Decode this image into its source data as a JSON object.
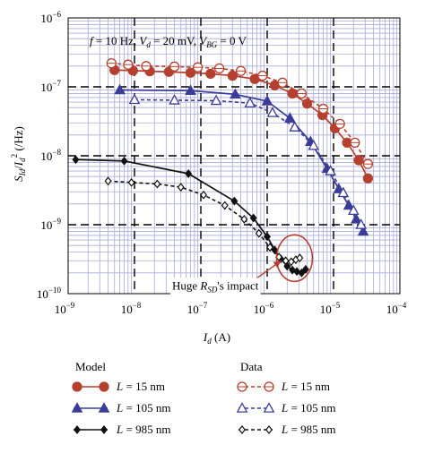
{
  "chart_data": {
    "type": "scatter",
    "title": "f = 10 Hz, V_d = 20 mV, V_BG = 0 V",
    "title_parts": {
      "f": "f",
      "f_val": " = 10 Hz, ",
      "vd": "V",
      "vd_sub": "d",
      "vd_val": " = 20 mV, ",
      "vbg": "V",
      "vbg_sub": "BG",
      "vbg_val": " = 0 V"
    },
    "xlabel": "I_d (A)",
    "xlabel_parts": {
      "sym": "I",
      "sub": "d",
      "unit": " (A)"
    },
    "ylabel": "S_Id/I_d^2 (/Hz)",
    "ylabel_parts": {
      "s": "S",
      "s_sub": "Id",
      "slash": "/",
      "i": "I",
      "i_sub": "d",
      "i_sup": "2",
      "unit": " (/Hz)"
    },
    "x_scale": "log",
    "y_scale": "log",
    "xlim": [
      1e-09,
      0.0001
    ],
    "ylim": [
      1e-10,
      1e-06
    ],
    "x_ticks": [
      {
        "base": "10",
        "exp": "−9"
      },
      {
        "base": "10",
        "exp": "−8"
      },
      {
        "base": "10",
        "exp": "−7"
      },
      {
        "base": "10",
        "exp": "−6"
      },
      {
        "base": "10",
        "exp": "−5"
      },
      {
        "base": "10",
        "exp": "−4"
      }
    ],
    "y_ticks": [
      {
        "base": "10",
        "exp": "−10"
      },
      {
        "base": "10",
        "exp": "−9"
      },
      {
        "base": "10",
        "exp": "−8"
      },
      {
        "base": "10",
        "exp": "−7"
      },
      {
        "base": "10",
        "exp": "−6"
      }
    ],
    "grid": true,
    "annotation": {
      "pre": "Huge ",
      "sym": "R",
      "sub": "SD",
      "post": "'s impact",
      "x": 2.5e-06,
      "y": 2.5e-10
    },
    "series": [
      {
        "name": "L = 15 nm",
        "group": "Model",
        "color": "#b5402f",
        "marker": "filled-circle",
        "line": "solid",
        "x": [
          5e-09,
          9.5e-09,
          1.7e-08,
          3.3e-08,
          7e-08,
          1.4e-07,
          3e-07,
          6.5e-07,
          1.3e-06,
          2.4e-06,
          4e-06,
          6.8e-06,
          1.05e-05,
          1.6e-05,
          2.4e-05,
          3.3e-05
        ],
        "y": [
          1.75e-07,
          1.72e-07,
          1.68e-07,
          1.65e-07,
          1.6e-07,
          1.55e-07,
          1.45e-07,
          1.3e-07,
          1.05e-07,
          8e-08,
          5.7e-08,
          3.9e-08,
          2.5e-08,
          1.55e-08,
          8.6e-09,
          4.7e-09
        ]
      },
      {
        "name": "L = 105 nm",
        "group": "Model",
        "color": "#3a3c98",
        "marker": "filled-triangle",
        "line": "solid",
        "x": [
          6e-09,
          7e-08,
          3.3e-07,
          1e-06,
          2.2e-06,
          4.5e-06,
          8e-06,
          1.2e-05,
          1.7e-05,
          2.2e-05,
          2.8e-05
        ],
        "y": [
          9e-08,
          8.8e-08,
          7.8e-08,
          6.2e-08,
          3.5e-08,
          1.6e-08,
          6.5e-09,
          3.3e-09,
          1.9e-09,
          1.2e-09,
          8e-10
        ]
      },
      {
        "name": "L = 985 nm",
        "group": "Model",
        "color": "#111111",
        "marker": "filled-diamond",
        "line": "solid",
        "x": [
          1.3e-09,
          7e-09,
          6.5e-08,
          3.2e-07,
          6.2e-07,
          1e-06,
          1.3e-06,
          1.6e-06,
          2e-06,
          2.4e-06,
          2.8e-06,
          3.3e-06,
          3.8e-06
        ],
        "y": [
          8.8e-09,
          8.4e-09,
          5.5e-09,
          2.2e-09,
          1.25e-09,
          6.7e-10,
          4.3e-10,
          3.2e-10,
          2.5e-10,
          2.2e-10,
          2.1e-10,
          2e-10,
          2.25e-10
        ]
      },
      {
        "name": "L = 15 nm",
        "group": "Data",
        "color": "#b5402f",
        "marker": "open-circle",
        "line": "dashed",
        "x": [
          4.5e-09,
          8e-09,
          1.5e-08,
          4e-08,
          9e-08,
          1.9e-07,
          4e-07,
          8.5e-07,
          1.7e-06,
          3.3e-06,
          7e-06,
          1.25e-05,
          2.1e-05,
          3.3e-05
        ],
        "y": [
          2.2e-07,
          2.1e-07,
          2e-07,
          1.97e-07,
          1.92e-07,
          1.85e-07,
          1.7e-07,
          1.45e-07,
          1.15e-07,
          8e-08,
          4.8e-08,
          2.9e-08,
          1.55e-08,
          7.6e-09
        ]
      },
      {
        "name": "L = 105 nm",
        "group": "Data",
        "color": "#3a3c98",
        "marker": "open-triangle",
        "line": "dashed",
        "x": [
          1e-08,
          4e-08,
          1.7e-07,
          5.5e-07,
          1.2e-06,
          2.6e-06,
          5e-06,
          9e-06,
          1.4e-05,
          2e-05,
          2.6e-05
        ],
        "y": [
          6.5e-08,
          6.4e-08,
          6.3e-08,
          5.8e-08,
          4.2e-08,
          2.6e-08,
          1.4e-08,
          6e-09,
          2.9e-09,
          1.6e-09,
          1e-09
        ]
      },
      {
        "name": "L = 985 nm",
        "group": "Data",
        "color": "#111111",
        "marker": "open-diamond",
        "line": "dashed",
        "x": [
          4e-09,
          9e-09,
          2.2e-08,
          5e-08,
          1.1e-07,
          2.3e-07,
          4.5e-07,
          7.5e-07,
          1.1e-06,
          1.5e-06,
          1.9e-06,
          2.3e-06,
          2.7e-06,
          3.1e-06
        ],
        "y": [
          4.3e-09,
          4.1e-09,
          3.9e-09,
          3.5e-09,
          2.7e-09,
          1.9e-09,
          1.2e-09,
          7.5e-10,
          4.7e-10,
          3.4e-10,
          3e-10,
          2.9e-10,
          3.1e-10,
          3.3e-10
        ]
      }
    ]
  },
  "legend": {
    "model_title": "Model",
    "data_title": "Data",
    "model": [
      {
        "sym": "L",
        "val": " = 15 nm",
        "color": "#b5402f",
        "marker": "filled-circle"
      },
      {
        "sym": "L",
        "val": " = 105 nm",
        "color": "#3a3c98",
        "marker": "filled-triangle"
      },
      {
        "sym": "L",
        "val": " = 985 nm",
        "color": "#111111",
        "marker": "filled-diamond"
      }
    ],
    "data": [
      {
        "sym": "L",
        "val": " = 15 nm",
        "color": "#b5402f",
        "marker": "open-circle"
      },
      {
        "sym": "L",
        "val": " = 105 nm",
        "color": "#3a3c98",
        "marker": "open-triangle"
      },
      {
        "sym": "L",
        "val": " = 985 nm",
        "color": "#111111",
        "marker": "open-diamond"
      }
    ]
  }
}
